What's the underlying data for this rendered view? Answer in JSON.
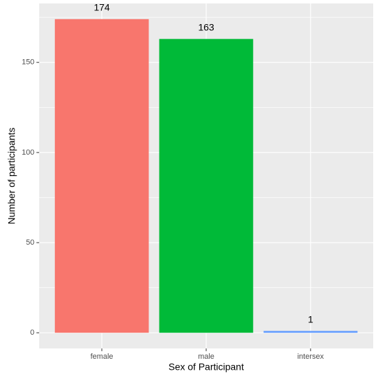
{
  "chart_data": {
    "type": "bar",
    "x_label": "Sex of Participant",
    "y_label": "Number of participants",
    "categories": [
      "female",
      "male",
      "intersex"
    ],
    "values": [
      174,
      163,
      1
    ],
    "colors": [
      "#F8766D",
      "#00BA38",
      "#619CFF"
    ],
    "ylim": [
      -8.7,
      182.7
    ],
    "yticks": [
      0,
      50,
      100,
      150
    ],
    "minor_yticks": [
      25,
      75,
      125,
      175
    ],
    "grid": true,
    "show_value_labels": true
  }
}
